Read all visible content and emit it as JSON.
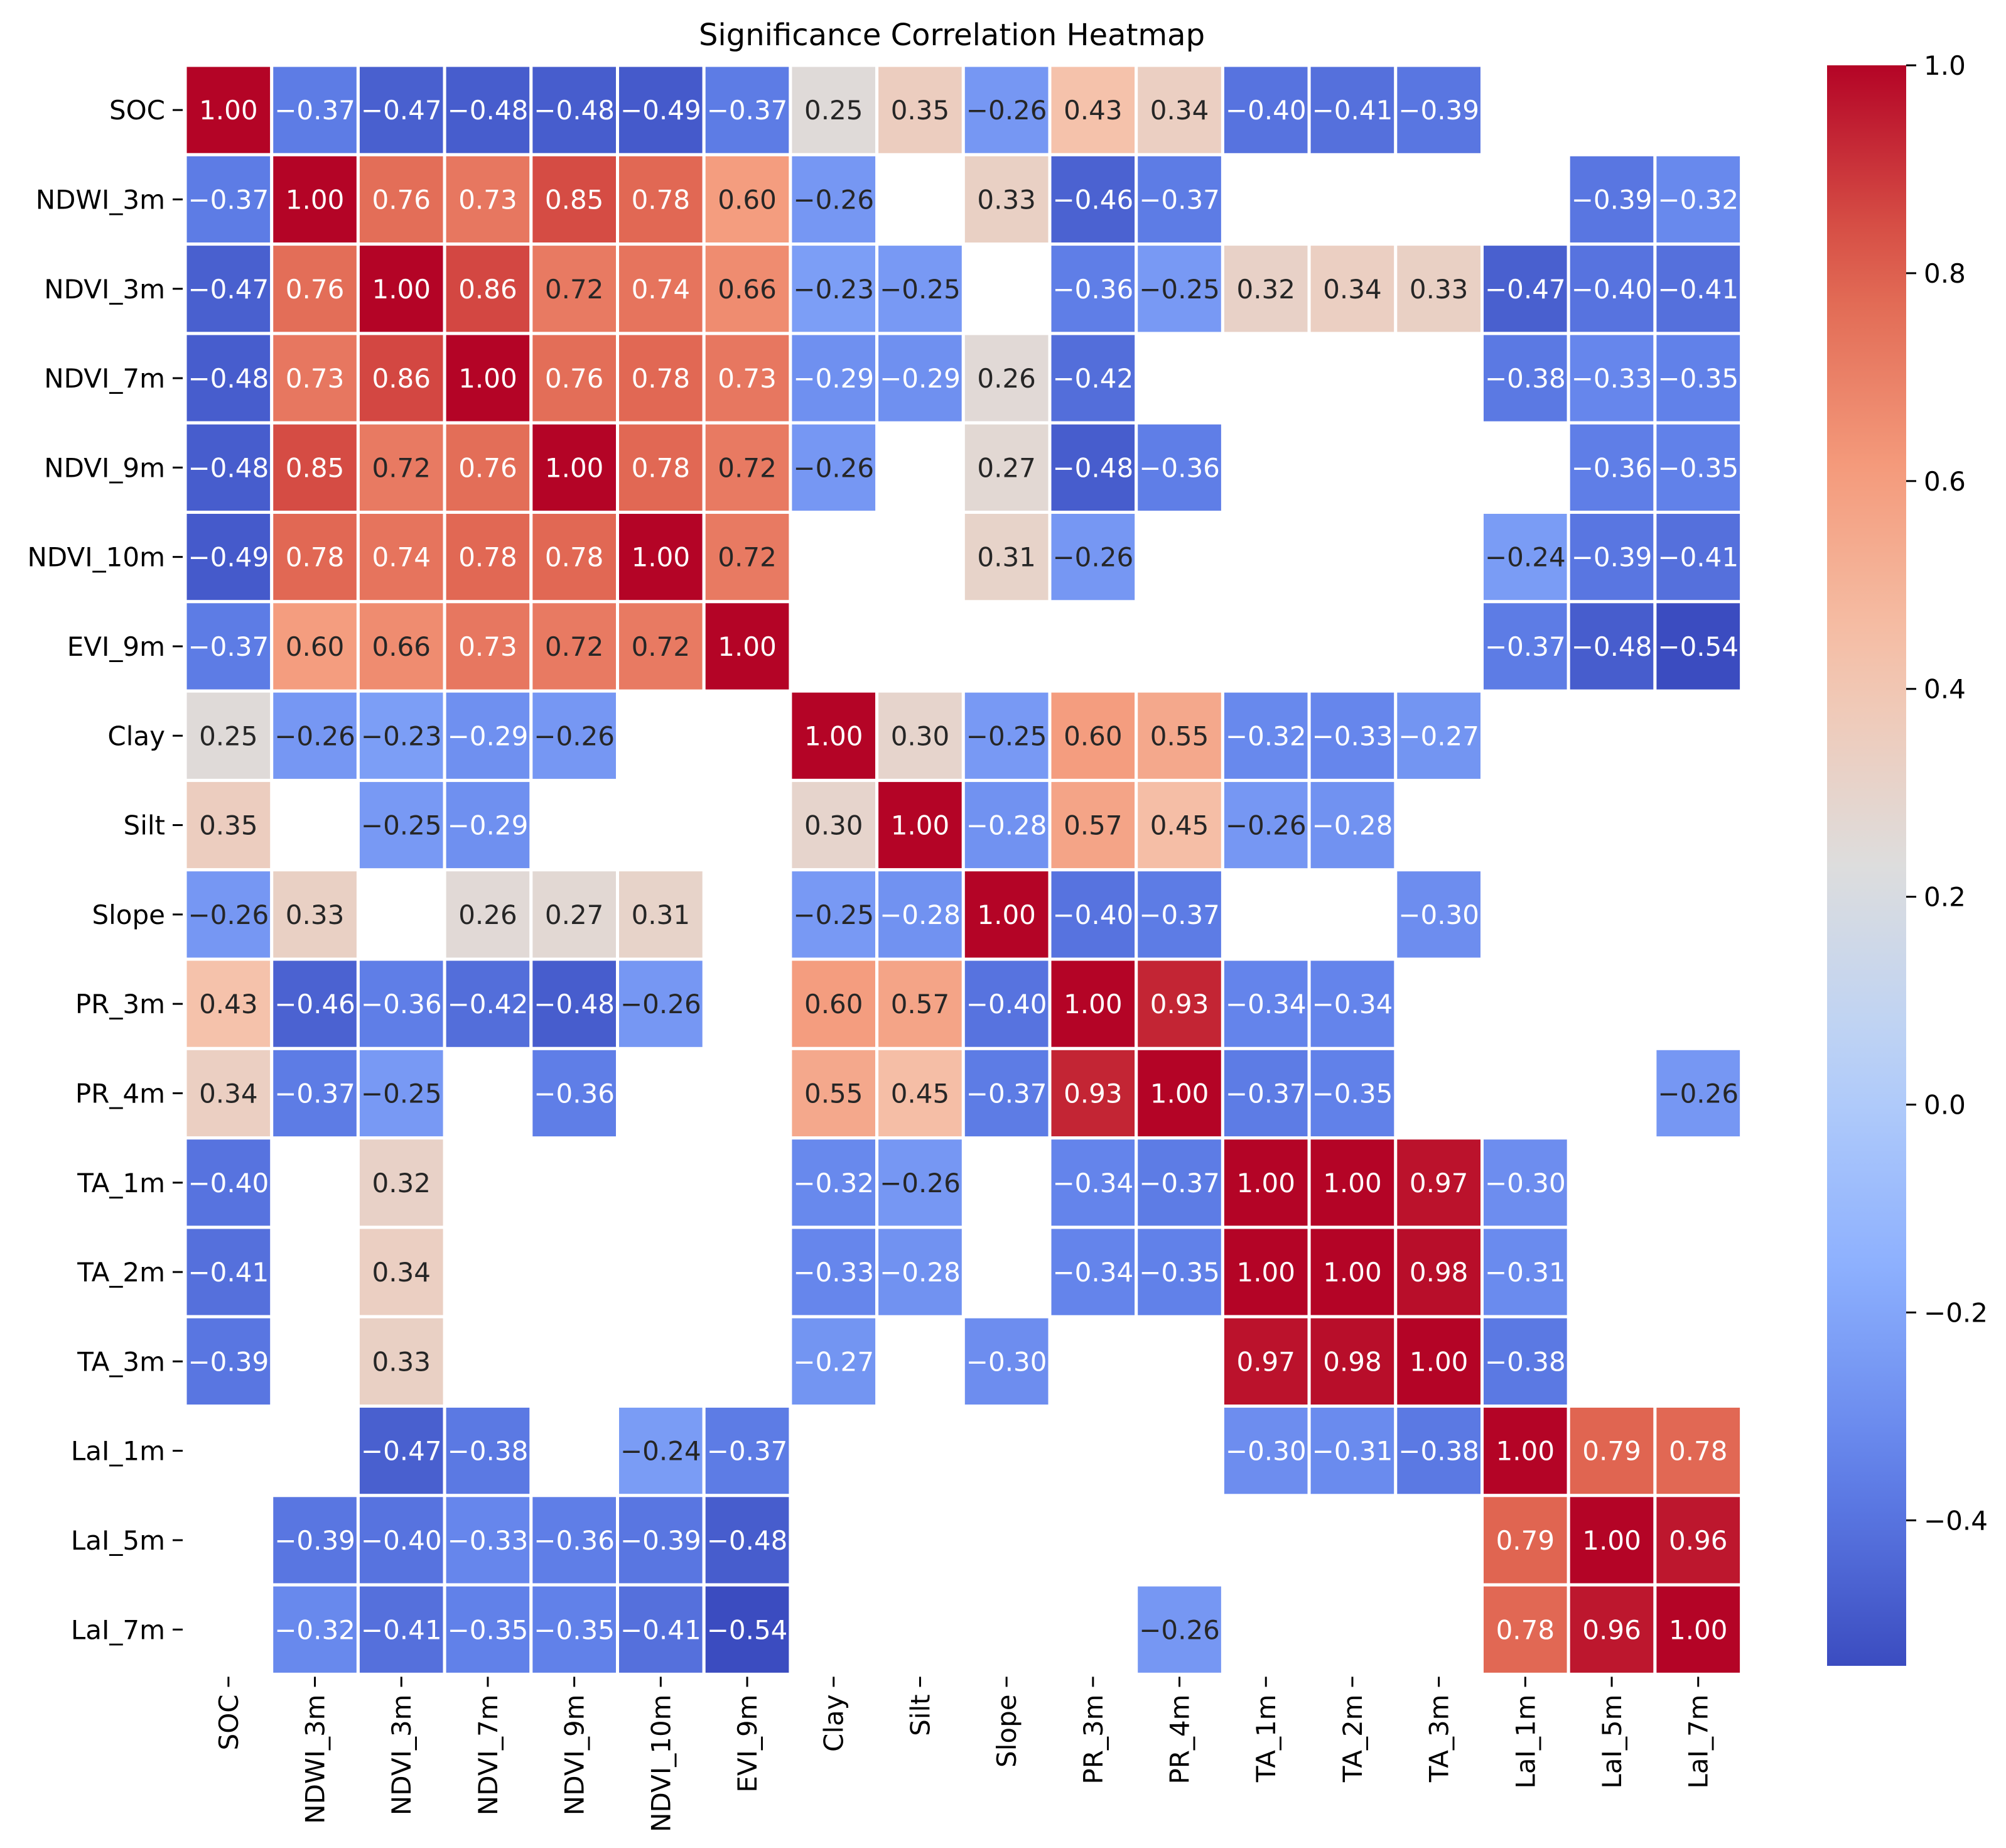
{
  "chart_data": {
    "type": "heatmap",
    "title": "Significance Correlation Heatmap",
    "xlabel": "",
    "ylabel": "",
    "labels": [
      "SOC",
      "NDWI_3m",
      "NDVI_3m",
      "NDVI_7m",
      "NDVI_9m",
      "NDVI_10m",
      "EVI_9m",
      "Clay",
      "Silt",
      "Slope",
      "PR_3m",
      "PR_4m",
      "TA_1m",
      "TA_2m",
      "TA_3m",
      "LaI_1m",
      "LaI_5m",
      "LaI_7m"
    ],
    "matrix": [
      [
        1.0,
        -0.37,
        -0.47,
        -0.48,
        -0.48,
        -0.49,
        -0.37,
        0.25,
        0.35,
        -0.26,
        0.43,
        0.34,
        -0.4,
        -0.41,
        -0.39,
        null,
        null,
        null
      ],
      [
        -0.37,
        1.0,
        0.76,
        0.73,
        0.85,
        0.78,
        0.6,
        -0.26,
        null,
        0.33,
        -0.46,
        -0.37,
        null,
        null,
        null,
        null,
        -0.39,
        -0.32
      ],
      [
        -0.47,
        0.76,
        1.0,
        0.86,
        0.72,
        0.74,
        0.66,
        -0.23,
        -0.25,
        null,
        -0.36,
        -0.25,
        0.32,
        0.34,
        0.33,
        -0.47,
        -0.4,
        -0.41
      ],
      [
        -0.48,
        0.73,
        0.86,
        1.0,
        0.76,
        0.78,
        0.73,
        -0.29,
        -0.29,
        0.26,
        -0.42,
        null,
        null,
        null,
        null,
        -0.38,
        -0.33,
        -0.35
      ],
      [
        -0.48,
        0.85,
        0.72,
        0.76,
        1.0,
        0.78,
        0.72,
        -0.26,
        null,
        0.27,
        -0.48,
        -0.36,
        null,
        null,
        null,
        null,
        -0.36,
        -0.35
      ],
      [
        -0.49,
        0.78,
        0.74,
        0.78,
        0.78,
        1.0,
        0.72,
        null,
        null,
        0.31,
        -0.26,
        null,
        null,
        null,
        null,
        -0.24,
        -0.39,
        -0.41
      ],
      [
        -0.37,
        0.6,
        0.66,
        0.73,
        0.72,
        0.72,
        1.0,
        null,
        null,
        null,
        null,
        null,
        null,
        null,
        null,
        -0.37,
        -0.48,
        -0.54
      ],
      [
        0.25,
        -0.26,
        -0.23,
        -0.29,
        -0.26,
        null,
        null,
        1.0,
        0.3,
        -0.25,
        0.6,
        0.55,
        -0.32,
        -0.33,
        -0.27,
        null,
        null,
        null
      ],
      [
        0.35,
        null,
        -0.25,
        -0.29,
        null,
        null,
        null,
        0.3,
        1.0,
        -0.28,
        0.57,
        0.45,
        -0.26,
        -0.28,
        null,
        null,
        null,
        null
      ],
      [
        -0.26,
        0.33,
        null,
        0.26,
        0.27,
        0.31,
        null,
        -0.25,
        -0.28,
        1.0,
        -0.4,
        -0.37,
        null,
        null,
        -0.3,
        null,
        null,
        null
      ],
      [
        0.43,
        -0.46,
        -0.36,
        -0.42,
        -0.48,
        -0.26,
        null,
        0.6,
        0.57,
        -0.4,
        1.0,
        0.93,
        -0.34,
        -0.34,
        null,
        null,
        null,
        null
      ],
      [
        0.34,
        -0.37,
        -0.25,
        null,
        -0.36,
        null,
        null,
        0.55,
        0.45,
        -0.37,
        0.93,
        1.0,
        -0.37,
        -0.35,
        null,
        null,
        null,
        -0.26
      ],
      [
        -0.4,
        null,
        0.32,
        null,
        null,
        null,
        null,
        -0.32,
        -0.26,
        null,
        -0.34,
        -0.37,
        1.0,
        1.0,
        0.97,
        -0.3,
        null,
        null
      ],
      [
        -0.41,
        null,
        0.34,
        null,
        null,
        null,
        null,
        -0.33,
        -0.28,
        null,
        -0.34,
        -0.35,
        1.0,
        1.0,
        0.98,
        -0.31,
        null,
        null
      ],
      [
        -0.39,
        null,
        0.33,
        null,
        null,
        null,
        null,
        -0.27,
        null,
        -0.3,
        null,
        null,
        0.97,
        0.98,
        1.0,
        -0.38,
        null,
        null
      ],
      [
        null,
        null,
        -0.47,
        -0.38,
        null,
        -0.24,
        -0.37,
        null,
        null,
        null,
        null,
        null,
        -0.3,
        -0.31,
        -0.38,
        1.0,
        0.79,
        0.78
      ],
      [
        null,
        -0.39,
        -0.4,
        -0.33,
        -0.36,
        -0.39,
        -0.48,
        null,
        null,
        null,
        null,
        null,
        null,
        null,
        null,
        0.79,
        1.0,
        0.96
      ],
      [
        null,
        -0.32,
        -0.41,
        -0.35,
        -0.35,
        -0.41,
        -0.54,
        null,
        null,
        null,
        null,
        -0.26,
        null,
        null,
        null,
        0.78,
        0.96,
        1.0
      ]
    ],
    "value_format": "2 decimals",
    "colormap": "coolwarm",
    "vmin": -0.54,
    "vmax": 1.0,
    "colorbar_ticks": [
      "1.0",
      "0.8",
      "0.6",
      "0.4",
      "0.2",
      "0.0",
      "−0.2",
      "−0.4"
    ],
    "colorbar_tick_values": [
      1.0,
      0.8,
      0.6,
      0.4,
      0.2,
      0.0,
      -0.2,
      -0.4
    ],
    "grid": false,
    "cell_border_color": "#ffffff"
  }
}
